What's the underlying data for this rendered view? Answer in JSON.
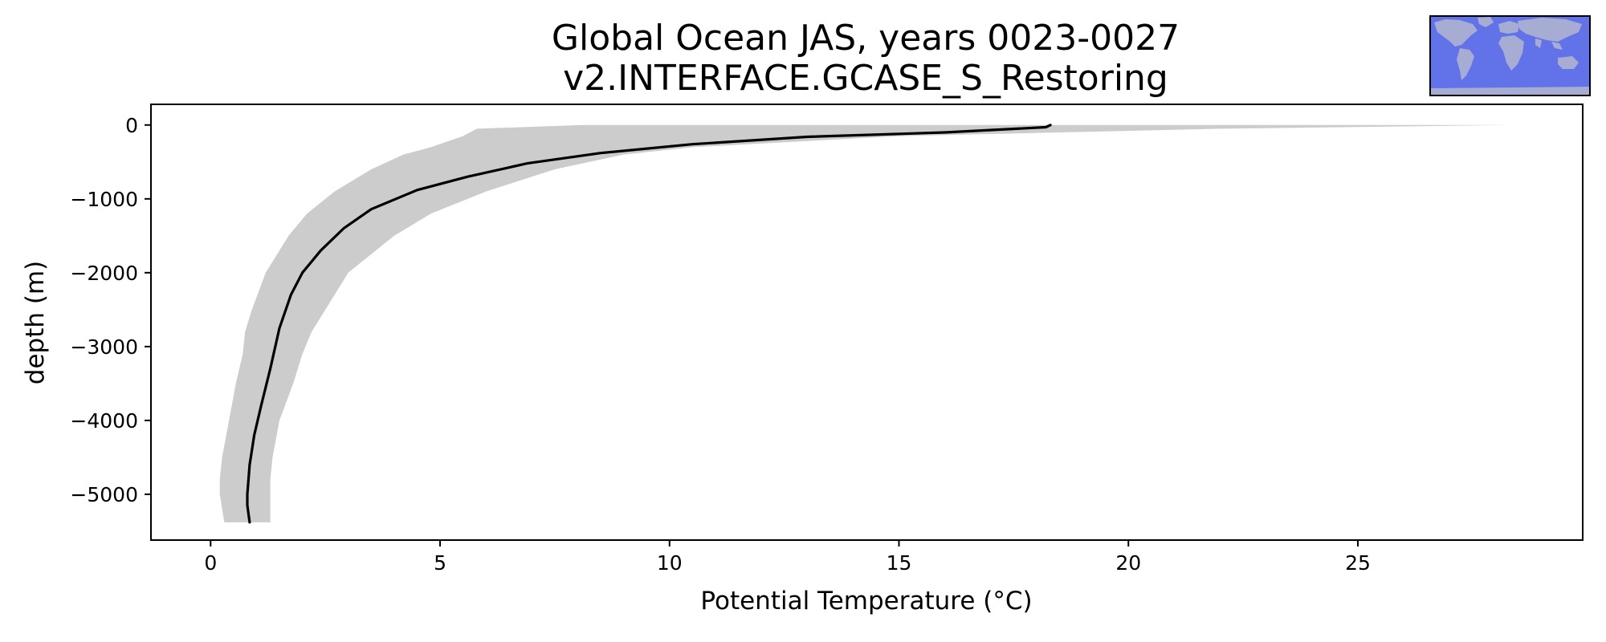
{
  "chart_data": {
    "type": "line",
    "title": [
      "Global Ocean JAS, years 0023-0027",
      "v2.INTERFACE.GCASE_S_Restoring"
    ],
    "xlabel": "Potential Temperature (°C)",
    "ylabel": "depth (m)",
    "xlim": [
      -1.3,
      29.9
    ],
    "ylim": [
      -5620,
      280
    ],
    "xticks": [
      0,
      5,
      10,
      15,
      20,
      25
    ],
    "yticks": [
      0,
      -1000,
      -2000,
      -3000,
      -4000,
      -5000
    ],
    "xticklabels": [
      "0",
      "5",
      "10",
      "15",
      "20",
      "25"
    ],
    "yticklabels": [
      "0",
      "−1000",
      "−2000",
      "−3000",
      "−4000",
      "−5000"
    ],
    "grid": false,
    "line_color": "#000000",
    "band_color": "#cccccc",
    "mean_profile": {
      "x": [
        18.3,
        18.2,
        16.0,
        13.0,
        10.5,
        8.5,
        6.9,
        5.6,
        4.5,
        3.5,
        2.9,
        2.4,
        2.0,
        1.75,
        1.5,
        1.3,
        1.1,
        0.95,
        0.85,
        0.8,
        0.8,
        0.85
      ],
      "y": [
        0,
        -30,
        -100,
        -160,
        -260,
        -380,
        -520,
        -700,
        -880,
        -1140,
        -1400,
        -1700,
        -2000,
        -2300,
        -2750,
        -3300,
        -3800,
        -4200,
        -4600,
        -5000,
        -5150,
        -5380
      ]
    },
    "range_band": {
      "y": [
        0,
        -50,
        -150,
        -300,
        -400,
        -600,
        -900,
        -1200,
        -1500,
        -2000,
        -2500,
        -2800,
        -3100,
        -3500,
        -4000,
        -4500,
        -4800,
        -5000,
        -5200,
        -5380
      ],
      "min": [
        8.1,
        5.8,
        5.5,
        4.8,
        4.2,
        3.5,
        2.7,
        2.1,
        1.7,
        1.2,
        0.9,
        0.75,
        0.7,
        0.55,
        0.4,
        0.25,
        0.2,
        0.2,
        0.25,
        0.3
      ],
      "max": [
        28.3,
        22.0,
        15.0,
        10.5,
        9.0,
        7.5,
        6.0,
        4.8,
        4.0,
        3.0,
        2.5,
        2.2,
        2.0,
        1.8,
        1.5,
        1.35,
        1.3,
        1.3,
        1.3,
        1.3
      ]
    }
  },
  "inset_map": {
    "ocean_color": "#6272e8",
    "land_color": "#a7acd3",
    "border_color": "#000000"
  }
}
